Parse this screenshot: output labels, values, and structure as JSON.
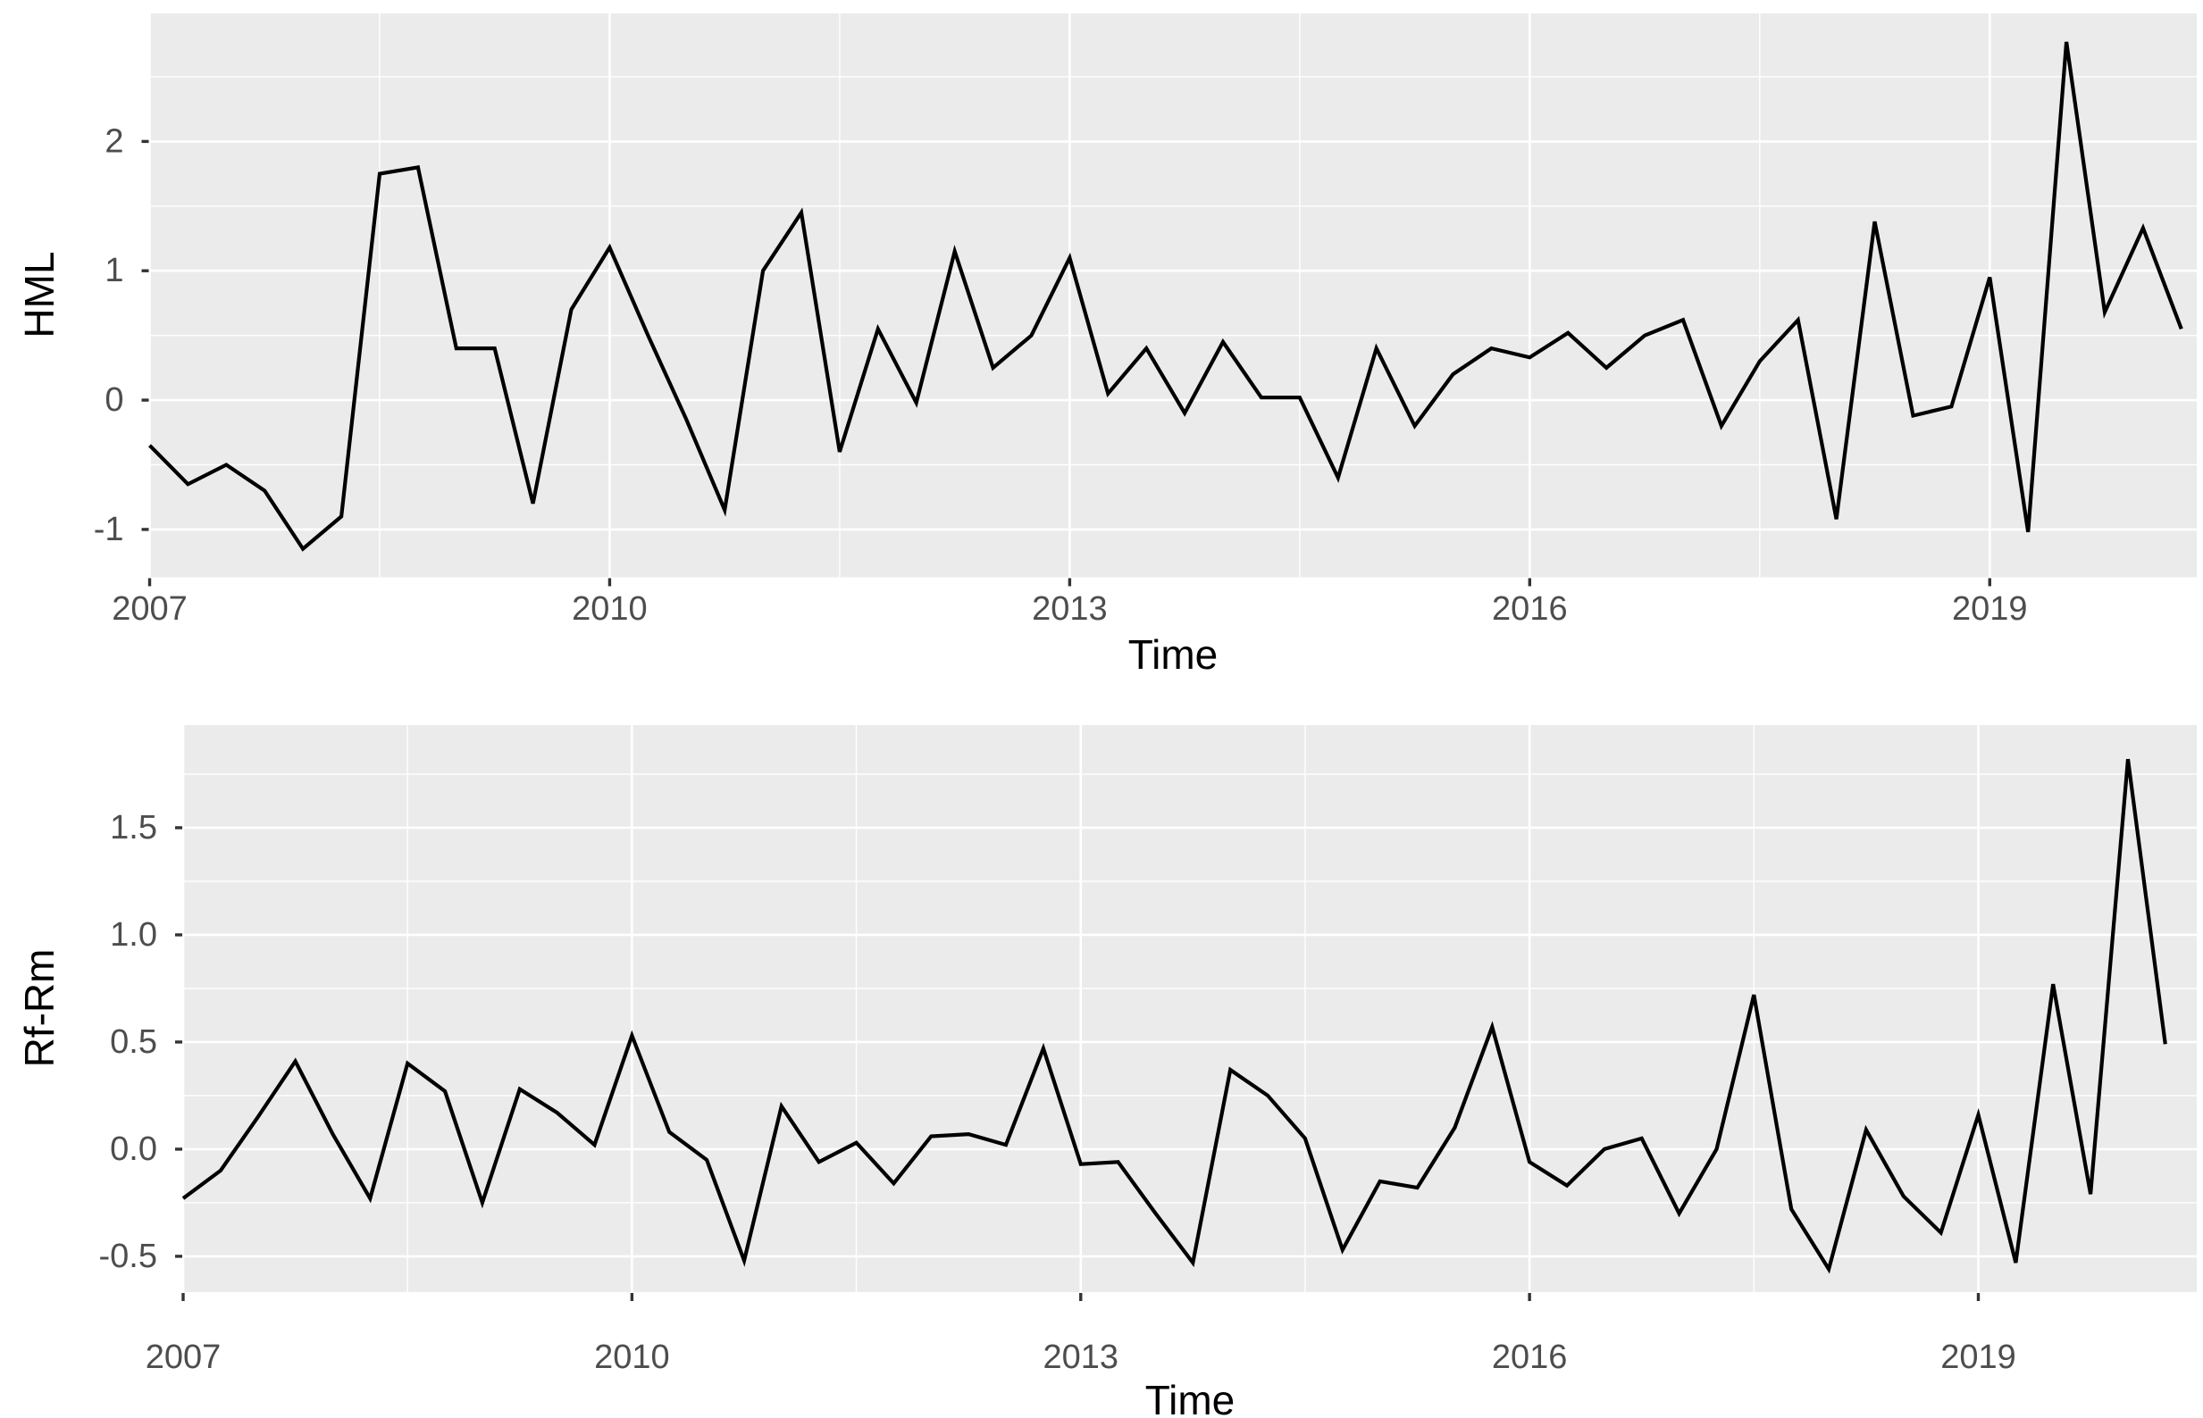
{
  "figure": {
    "description": "Two stacked ggplot2-style quarterly time series line charts sharing a Time x-axis",
    "background_color": "#FFFFFF",
    "panel_background_color": "#EBEBEB",
    "grid_color": "#FFFFFF",
    "line_color": "#000000",
    "tick_mark_color": "#333333",
    "tick_label_color": "#4D4D4D"
  },
  "chart_data": [
    {
      "type": "line",
      "title": "",
      "ylabel": "HML",
      "xlabel": "Time",
      "x_start": 2007.0,
      "x_step": 0.25,
      "x": [
        2007.0,
        2007.25,
        2007.5,
        2007.75,
        2008.0,
        2008.25,
        2008.5,
        2008.75,
        2009.0,
        2009.25,
        2009.5,
        2009.75,
        2010.0,
        2010.25,
        2010.5,
        2010.75,
        2011.0,
        2011.25,
        2011.5,
        2011.75,
        2012.0,
        2012.25,
        2012.5,
        2012.75,
        2013.0,
        2013.25,
        2013.5,
        2013.75,
        2014.0,
        2014.25,
        2014.5,
        2014.75,
        2015.0,
        2015.25,
        2015.5,
        2015.75,
        2016.0,
        2016.25,
        2016.5,
        2016.75,
        2017.0,
        2017.25,
        2017.5,
        2017.75,
        2018.0,
        2018.25,
        2018.5,
        2018.75,
        2019.0,
        2019.25,
        2019.5,
        2019.75,
        2020.0,
        2020.25
      ],
      "values": [
        -0.35,
        -0.65,
        -0.5,
        -0.7,
        -1.15,
        -0.9,
        1.75,
        1.8,
        0.4,
        0.4,
        -0.8,
        0.7,
        1.18,
        0.5,
        -0.15,
        -0.85,
        1.0,
        1.45,
        -0.4,
        0.55,
        -0.02,
        1.15,
        0.25,
        0.5,
        1.1,
        0.05,
        0.4,
        -0.1,
        0.45,
        0.02,
        0.02,
        -0.6,
        0.4,
        -0.2,
        0.2,
        0.4,
        0.33,
        0.52,
        0.25,
        0.5,
        0.62,
        -0.2,
        0.3,
        0.62,
        -0.92,
        1.38,
        -0.12,
        -0.05,
        0.95,
        -1.02,
        2.77,
        0.68,
        1.33,
        0.55
      ],
      "xlim": [
        2007.0,
        2020.35
      ],
      "ylim": [
        -1.37,
        2.99
      ],
      "x_ticks": {
        "major": [
          2007,
          2010,
          2013,
          2016,
          2019
        ],
        "labels": [
          "2007",
          "2010",
          "2013",
          "2016",
          "2019"
        ],
        "minor": [
          2008.5,
          2011.5,
          2014.5,
          2017.5
        ]
      },
      "y_ticks": {
        "major": [
          -1,
          0,
          1,
          2
        ],
        "labels": [
          "-1",
          "0",
          "1",
          "2"
        ],
        "minor": [
          -0.5,
          0.5,
          1.5,
          2.5
        ]
      },
      "grid": true,
      "legend": "none"
    },
    {
      "type": "line",
      "title": "",
      "ylabel": "Rf-Rm",
      "xlabel": "Time",
      "x_start": 2007.0,
      "x_step": 0.25,
      "x": [
        2007.0,
        2007.25,
        2007.5,
        2007.75,
        2008.0,
        2008.25,
        2008.5,
        2008.75,
        2009.0,
        2009.25,
        2009.5,
        2009.75,
        2010.0,
        2010.25,
        2010.5,
        2010.75,
        2011.0,
        2011.25,
        2011.5,
        2011.75,
        2012.0,
        2012.25,
        2012.5,
        2012.75,
        2013.0,
        2013.25,
        2013.5,
        2013.75,
        2014.0,
        2014.25,
        2014.5,
        2014.75,
        2015.0,
        2015.25,
        2015.5,
        2015.75,
        2016.0,
        2016.25,
        2016.5,
        2016.75,
        2017.0,
        2017.25,
        2017.5,
        2017.75,
        2018.0,
        2018.25,
        2018.5,
        2018.75,
        2019.0,
        2019.25,
        2019.5,
        2019.75,
        2020.0,
        2020.25
      ],
      "values": [
        -0.23,
        -0.1,
        0.15,
        0.41,
        0.07,
        -0.23,
        0.4,
        0.27,
        -0.25,
        0.28,
        0.17,
        0.02,
        0.53,
        0.08,
        -0.05,
        -0.52,
        0.2,
        -0.06,
        0.03,
        -0.16,
        0.06,
        0.07,
        0.02,
        0.47,
        -0.07,
        -0.06,
        -0.3,
        -0.53,
        0.37,
        0.25,
        0.05,
        -0.47,
        -0.15,
        -0.18,
        0.1,
        0.57,
        -0.06,
        -0.17,
        0.0,
        0.05,
        -0.3,
        0.0,
        0.72,
        -0.28,
        -0.56,
        0.09,
        -0.22,
        -0.39,
        0.16,
        -0.53,
        0.77,
        -0.21,
        1.82,
        0.49
      ],
      "xlim": [
        2007.0,
        2020.46
      ],
      "ylim": [
        -0.667,
        1.979
      ],
      "x_ticks": {
        "major": [
          2007,
          2010,
          2013,
          2016,
          2019
        ],
        "labels": [
          "2007",
          "2010",
          "2013",
          "2016",
          "2019"
        ],
        "minor": [
          2008.5,
          2011.5,
          2014.5,
          2017.5
        ]
      },
      "y_ticks": {
        "major": [
          -0.5,
          0.0,
          0.5,
          1.0,
          1.5
        ],
        "labels": [
          "-0.5",
          "0.0",
          "0.5",
          "1.0",
          "1.5"
        ],
        "minor": [
          -0.25,
          0.25,
          0.75,
          1.25,
          1.75
        ]
      },
      "grid": true,
      "legend": "none"
    }
  ]
}
